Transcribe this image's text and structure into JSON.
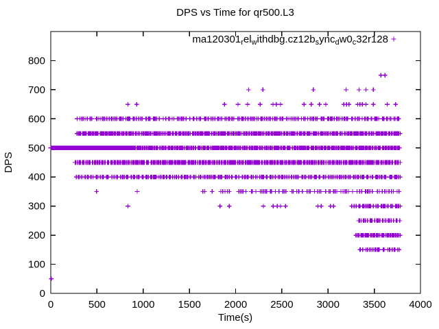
{
  "chart_data": {
    "type": "scatter",
    "title": "DPS vs Time for qr500.L3",
    "xlabel": "Time(s)",
    "ylabel": "DPS",
    "xlim": [
      0,
      4000
    ],
    "ylim": [
      0,
      900
    ],
    "xticks": [
      0,
      500,
      1000,
      1500,
      2000,
      2500,
      3000,
      3500,
      4000
    ],
    "yticks": [
      0,
      100,
      200,
      300,
      400,
      500,
      600,
      700,
      800
    ],
    "grid": false,
    "background": "#ffffff",
    "point_color": "#9400D3",
    "marker": "plus",
    "legend": {
      "position": "top-right-inside",
      "label_plain": "ma120301_rel_withdbg.cz12b_sync_dw0_c32r128",
      "label_segments": [
        {
          "text": "ma120301",
          "sub": false
        },
        {
          "text": "r",
          "sub": true
        },
        {
          "text": "el",
          "sub": false
        },
        {
          "text": "w",
          "sub": true
        },
        {
          "text": "ithdbg.cz12b",
          "sub": false
        },
        {
          "text": "s",
          "sub": true
        },
        {
          "text": "ync",
          "sub": false
        },
        {
          "text": "d",
          "sub": true
        },
        {
          "text": "w0",
          "sub": false
        },
        {
          "text": "c",
          "sub": true
        },
        {
          "text": "32r128",
          "sub": false
        }
      ],
      "marker": "plus"
    },
    "series": [
      {
        "name": "ma120301_rel_withdbg.cz12b_sync_dw0_c32r128",
        "color": "#9400D3",
        "marker": "plus",
        "points": [
          [
            5,
            50
          ],
          [
            3570,
            750
          ],
          [
            3615,
            750
          ],
          [
            2140,
            700
          ],
          [
            2295,
            700
          ],
          [
            2840,
            700
          ],
          [
            3195,
            700
          ],
          [
            3335,
            700
          ],
          [
            3410,
            700
          ],
          [
            3490,
            700
          ],
          [
            834,
            650
          ],
          [
            930,
            650
          ],
          [
            1880,
            650
          ],
          [
            2026,
            650
          ],
          [
            2130,
            650
          ],
          [
            2266,
            650
          ],
          [
            2404,
            650
          ],
          [
            2440,
            650
          ],
          [
            2486,
            650
          ],
          [
            2741,
            650
          ],
          [
            2818,
            650
          ],
          [
            2906,
            650
          ],
          [
            2975,
            650
          ],
          [
            3170,
            650
          ],
          [
            3200,
            650
          ],
          [
            3225,
            650
          ],
          [
            3320,
            650
          ],
          [
            3345,
            650
          ],
          [
            3370,
            650
          ],
          [
            3410,
            650
          ],
          [
            3490,
            650
          ],
          [
            3640,
            650
          ],
          [
            3730,
            650
          ],
          [
            495,
            350
          ],
          [
            935,
            350
          ],
          [
            1645,
            350
          ],
          [
            1665,
            350
          ],
          [
            1745,
            350
          ],
          [
            1840,
            350
          ],
          [
            1860,
            350
          ],
          [
            1885,
            350
          ],
          [
            1910,
            350
          ],
          [
            1930,
            350
          ],
          [
            835,
            300
          ],
          [
            1830,
            300
          ],
          [
            1930,
            300
          ],
          [
            2300,
            300
          ],
          [
            2405,
            300
          ],
          [
            2450,
            300
          ],
          [
            2485,
            300
          ],
          [
            2540,
            300
          ],
          [
            2890,
            300
          ],
          [
            2925,
            300
          ],
          [
            3025,
            300
          ],
          [
            3060,
            300
          ]
        ],
        "bands": [
          {
            "y": 600,
            "segments": [
              [
                285,
                3780,
                225
              ]
            ]
          },
          {
            "y": 550,
            "segments": [
              [
                282,
                3780,
                460
              ]
            ]
          },
          {
            "y": 500,
            "segments": [
              [
                0,
                900,
                360
              ],
              [
                900,
                3780,
                440
              ]
            ]
          },
          {
            "y": 450,
            "segments": [
              [
                262,
                3780,
                440
              ]
            ]
          },
          {
            "y": 400,
            "segments": [
              [
                275,
                3780,
                255
              ]
            ]
          },
          {
            "y": 350,
            "segments": [
              [
                1990,
                3780,
                78
              ]
            ]
          },
          {
            "y": 300,
            "segments": [
              [
                3255,
                3780,
                42
              ]
            ]
          },
          {
            "y": 250,
            "segments": [
              [
                3320,
                3780,
                32
              ]
            ]
          },
          {
            "y": 200,
            "segments": [
              [
                3300,
                3780,
                58
              ]
            ]
          },
          {
            "y": 150,
            "segments": [
              [
                3340,
                3780,
                28
              ]
            ]
          }
        ]
      }
    ]
  }
}
